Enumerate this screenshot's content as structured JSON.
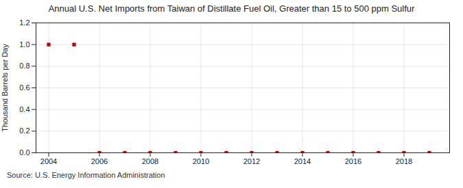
{
  "chart_data": {
    "type": "scatter",
    "title": "Annual U.S. Net Imports from Taiwan of Distillate Fuel Oil, Greater than 15 to 500 ppm Sulfur",
    "ylabel": "Thousand Barrels per Day",
    "source": "Source: U.S. Energy Information Administration",
    "x": [
      2004,
      2005,
      2006,
      2007,
      2008,
      2009,
      2010,
      2011,
      2012,
      2013,
      2014,
      2015,
      2016,
      2017,
      2018,
      2019
    ],
    "values": [
      1.0,
      1.0,
      0.0,
      0.0,
      0.0,
      0.0,
      0.0,
      0.0,
      0.0,
      0.0,
      0.0,
      0.0,
      0.0,
      0.0,
      0.0,
      0.0
    ],
    "color": "#cc0000",
    "marker": "square",
    "xlim": [
      2003.5,
      2019.8
    ],
    "xticks": [
      2004,
      2006,
      2008,
      2010,
      2012,
      2014,
      2016,
      2018
    ],
    "ylim": [
      0.0,
      1.2
    ],
    "yticks": [
      {
        "value": 0.0,
        "label": "0.0"
      },
      0.2,
      0.4,
      0.6,
      0.8,
      {
        "value": 1.0,
        "label": "1.0"
      },
      1.2
    ],
    "grid": true
  }
}
